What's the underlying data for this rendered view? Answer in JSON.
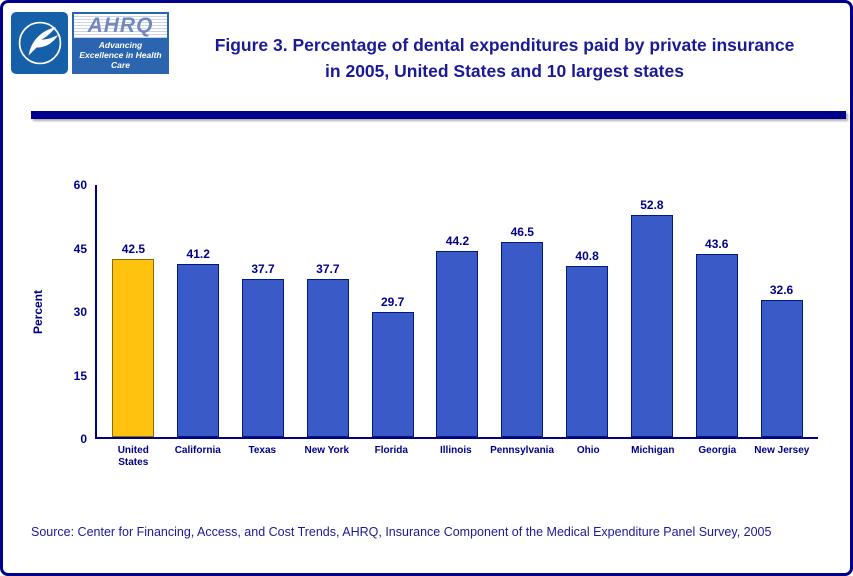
{
  "header": {
    "title": "Figure 3. Percentage of dental expenditures paid by private insurance in 2005, United States and 10 largest states",
    "ahrq": {
      "name": "AHRQ",
      "tagline": "Advancing Excellence in Health Care"
    }
  },
  "chart_data": {
    "type": "bar",
    "categories": [
      "United States",
      "California",
      "Texas",
      "New York",
      "Florida",
      "Illinois",
      "Pennsylvania",
      "Ohio",
      "Michigan",
      "Georgia",
      "New Jersey"
    ],
    "values": [
      42.5,
      41.2,
      37.7,
      37.7,
      29.7,
      44.2,
      46.5,
      40.8,
      52.8,
      43.6,
      32.6
    ],
    "title": "Figure 3. Percentage of dental expenditures paid by private insurance in 2005, United States and 10 largest states",
    "xlabel": "",
    "ylabel": "Percent",
    "ylim": [
      0,
      60
    ],
    "yticks": [
      0,
      15,
      30,
      45,
      60
    ],
    "grid": false,
    "legend": false,
    "bar_color": "#3a5bc7",
    "bar_border": "#001a80",
    "highlight_index": 0,
    "highlight_color": "#ffc20e",
    "highlight_border": "#8a6d00"
  },
  "footer": {
    "source": "Source: Center for Financing, Access, and Cost Trends, AHRQ, Insurance Component of the Medical Expenditure Panel Survey, 2005"
  }
}
